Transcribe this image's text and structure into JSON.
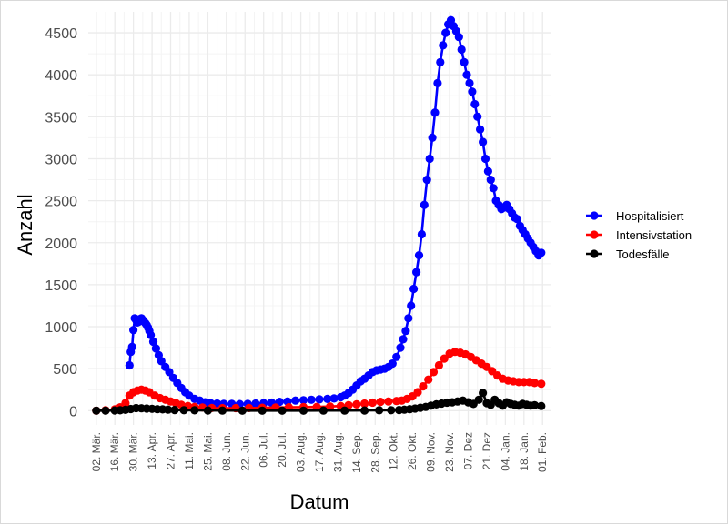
{
  "colors": {
    "hospitalized": "#0000ff",
    "icu": "#ff0000",
    "deaths": "#000000",
    "grid_major": "#ebebeb",
    "grid_minor": "#f4f4f4"
  },
  "chart_data": {
    "type": "line",
    "title": "",
    "xlabel": "Datum",
    "ylabel": "Anzahl",
    "x_ticks": [
      "02. Mär.",
      "16. Mär.",
      "30. Mär.",
      "13. Apr.",
      "27. Apr.",
      "11. Mai.",
      "25. Mai.",
      "08. Jun.",
      "22. Jun.",
      "06. Jul.",
      "20. Jul.",
      "03. Aug.",
      "17. Aug.",
      "31. Aug.",
      "14. Sep.",
      "28. Sep.",
      "12. Okt.",
      "26. Okt.",
      "09. Nov.",
      "23. Nov.",
      "07. Dez",
      "21. Dez",
      "04. Jan.",
      "18. Jan.",
      "01. Feb."
    ],
    "x_range": [
      "2020-02-25",
      "2021-02-07"
    ],
    "y_ticks": [
      0,
      500,
      1000,
      1500,
      2000,
      2500,
      3000,
      3500,
      4000,
      4500
    ],
    "ylim": [
      -170,
      4750
    ],
    "grid": true,
    "legend_position": "right",
    "series": [
      {
        "name": "Hospitalisiert",
        "color_key": "hospitalized",
        "x": [
          "2020-03-27",
          "2020-03-28",
          "2020-03-29",
          "2020-03-30",
          "2020-03-31",
          "2020-04-01",
          "2020-04-02",
          "2020-04-03",
          "2020-04-04",
          "2020-04-05",
          "2020-04-06",
          "2020-04-07",
          "2020-04-08",
          "2020-04-09",
          "2020-04-10",
          "2020-04-11",
          "2020-04-12",
          "2020-04-14",
          "2020-04-16",
          "2020-04-18",
          "2020-04-20",
          "2020-04-23",
          "2020-04-26",
          "2020-04-29",
          "2020-05-02",
          "2020-05-05",
          "2020-05-08",
          "2020-05-11",
          "2020-05-15",
          "2020-05-19",
          "2020-05-23",
          "2020-05-27",
          "2020-06-01",
          "2020-06-06",
          "2020-06-12",
          "2020-06-18",
          "2020-06-24",
          "2020-06-30",
          "2020-07-06",
          "2020-07-12",
          "2020-07-18",
          "2020-07-24",
          "2020-07-30",
          "2020-08-05",
          "2020-08-11",
          "2020-08-17",
          "2020-08-23",
          "2020-08-28",
          "2020-09-02",
          "2020-09-05",
          "2020-09-08",
          "2020-09-11",
          "2020-09-14",
          "2020-09-17",
          "2020-09-20",
          "2020-09-23",
          "2020-09-26",
          "2020-09-29",
          "2020-10-02",
          "2020-10-05",
          "2020-10-08",
          "2020-10-11",
          "2020-10-14",
          "2020-10-17",
          "2020-10-19",
          "2020-10-21",
          "2020-10-23",
          "2020-10-25",
          "2020-10-27",
          "2020-10-29",
          "2020-10-31",
          "2020-11-02",
          "2020-11-04",
          "2020-11-06",
          "2020-11-08",
          "2020-11-10",
          "2020-11-12",
          "2020-11-14",
          "2020-11-16",
          "2020-11-18",
          "2020-11-20",
          "2020-11-22",
          "2020-11-24",
          "2020-11-26",
          "2020-11-28",
          "2020-11-30",
          "2020-12-02",
          "2020-12-04",
          "2020-12-06",
          "2020-12-08",
          "2020-12-10",
          "2020-12-12",
          "2020-12-14",
          "2020-12-16",
          "2020-12-18",
          "2020-12-20",
          "2020-12-22",
          "2020-12-24",
          "2020-12-26",
          "2020-12-28",
          "2020-12-30",
          "2021-01-01",
          "2021-01-03",
          "2021-01-05",
          "2021-01-07",
          "2021-01-09",
          "2021-01-11",
          "2021-01-13",
          "2021-01-15",
          "2021-01-17",
          "2021-01-19",
          "2021-01-21",
          "2021-01-23",
          "2021-01-25",
          "2021-01-27",
          "2021-01-29",
          "2021-01-31"
        ],
        "values": [
          540,
          700,
          760,
          960,
          1100,
          1080,
          1050,
          1060,
          1090,
          1100,
          1080,
          1060,
          1040,
          1020,
          990,
          950,
          900,
          820,
          740,
          660,
          590,
          520,
          460,
          390,
          330,
          270,
          220,
          180,
          140,
          120,
          100,
          90,
          85,
          80,
          80,
          78,
          80,
          85,
          90,
          95,
          105,
          110,
          120,
          125,
          130,
          135,
          140,
          145,
          160,
          180,
          210,
          250,
          300,
          350,
          380,
          420,
          460,
          480,
          490,
          500,
          520,
          560,
          640,
          750,
          850,
          950,
          1100,
          1250,
          1450,
          1650,
          1850,
          2100,
          2450,
          2750,
          3000,
          3250,
          3550,
          3900,
          4150,
          4350,
          4500,
          4600,
          4650,
          4580,
          4520,
          4450,
          4300,
          4150,
          4000,
          3900,
          3800,
          3650,
          3500,
          3350,
          3200,
          3000,
          2850,
          2750,
          2650,
          2500,
          2450,
          2400,
          2420,
          2450,
          2400,
          2350,
          2300,
          2280,
          2200,
          2150,
          2100,
          2050,
          2000,
          1950,
          1900,
          1850,
          1880
        ]
      },
      {
        "name": "Intensivstation",
        "color_key": "icu",
        "x": [
          "2020-03-02",
          "2020-03-09",
          "2020-03-16",
          "2020-03-20",
          "2020-03-24",
          "2020-03-27",
          "2020-03-30",
          "2020-04-02",
          "2020-04-05",
          "2020-04-08",
          "2020-04-11",
          "2020-04-15",
          "2020-04-19",
          "2020-04-23",
          "2020-04-27",
          "2020-05-01",
          "2020-05-05",
          "2020-05-10",
          "2020-05-15",
          "2020-05-21",
          "2020-05-28",
          "2020-06-05",
          "2020-06-15",
          "2020-06-25",
          "2020-07-05",
          "2020-07-15",
          "2020-07-25",
          "2020-08-05",
          "2020-08-15",
          "2020-08-25",
          "2020-09-02",
          "2020-09-08",
          "2020-09-14",
          "2020-09-20",
          "2020-09-26",
          "2020-10-02",
          "2020-10-08",
          "2020-10-14",
          "2020-10-18",
          "2020-10-22",
          "2020-10-26",
          "2020-10-30",
          "2020-11-03",
          "2020-11-07",
          "2020-11-11",
          "2020-11-15",
          "2020-11-19",
          "2020-11-23",
          "2020-11-27",
          "2020-12-01",
          "2020-12-05",
          "2020-12-09",
          "2020-12-13",
          "2020-12-17",
          "2020-12-21",
          "2020-12-25",
          "2020-12-29",
          "2021-01-02",
          "2021-01-06",
          "2021-01-10",
          "2021-01-14",
          "2021-01-18",
          "2021-01-22",
          "2021-01-26",
          "2021-01-31"
        ],
        "values": [
          0,
          5,
          15,
          40,
          90,
          180,
          220,
          240,
          250,
          240,
          220,
          180,
          150,
          130,
          110,
          90,
          70,
          55,
          45,
          38,
          32,
          30,
          30,
          32,
          35,
          38,
          40,
          42,
          45,
          50,
          55,
          65,
          75,
          85,
          95,
          105,
          110,
          115,
          120,
          140,
          170,
          220,
          290,
          370,
          460,
          540,
          620,
          680,
          700,
          690,
          670,
          640,
          600,
          560,
          520,
          470,
          420,
          380,
          360,
          350,
          340,
          340,
          340,
          330,
          320
        ]
      },
      {
        "name": "Todesfälle",
        "color_key": "deaths",
        "x": [
          "2020-03-02",
          "2020-03-09",
          "2020-03-16",
          "2020-03-20",
          "2020-03-24",
          "2020-03-28",
          "2020-04-01",
          "2020-04-05",
          "2020-04-09",
          "2020-04-13",
          "2020-04-17",
          "2020-04-21",
          "2020-04-25",
          "2020-04-30",
          "2020-05-07",
          "2020-05-15",
          "2020-05-25",
          "2020-06-05",
          "2020-06-20",
          "2020-07-05",
          "2020-07-20",
          "2020-08-05",
          "2020-08-20",
          "2020-09-05",
          "2020-09-20",
          "2020-10-01",
          "2020-10-10",
          "2020-10-16",
          "2020-10-20",
          "2020-10-24",
          "2020-10-28",
          "2020-11-01",
          "2020-11-05",
          "2020-11-09",
          "2020-11-13",
          "2020-11-17",
          "2020-11-21",
          "2020-11-25",
          "2020-11-29",
          "2020-12-03",
          "2020-12-07",
          "2020-12-11",
          "2020-12-15",
          "2020-12-18",
          "2020-12-21",
          "2020-12-24",
          "2020-12-27",
          "2020-12-30",
          "2021-01-02",
          "2021-01-05",
          "2021-01-08",
          "2021-01-11",
          "2021-01-14",
          "2021-01-17",
          "2021-01-20",
          "2021-01-23",
          "2021-01-26",
          "2021-01-31"
        ],
        "values": [
          0,
          0,
          2,
          5,
          10,
          20,
          30,
          28,
          25,
          22,
          18,
          15,
          12,
          8,
          6,
          4,
          2,
          1,
          0,
          0,
          0,
          0,
          1,
          1,
          2,
          4,
          6,
          8,
          12,
          18,
          25,
          35,
          45,
          60,
          75,
          85,
          95,
          100,
          110,
          120,
          100,
          80,
          130,
          210,
          90,
          70,
          130,
          90,
          60,
          100,
          80,
          70,
          60,
          80,
          70,
          60,
          65,
          55
        ]
      }
    ]
  }
}
